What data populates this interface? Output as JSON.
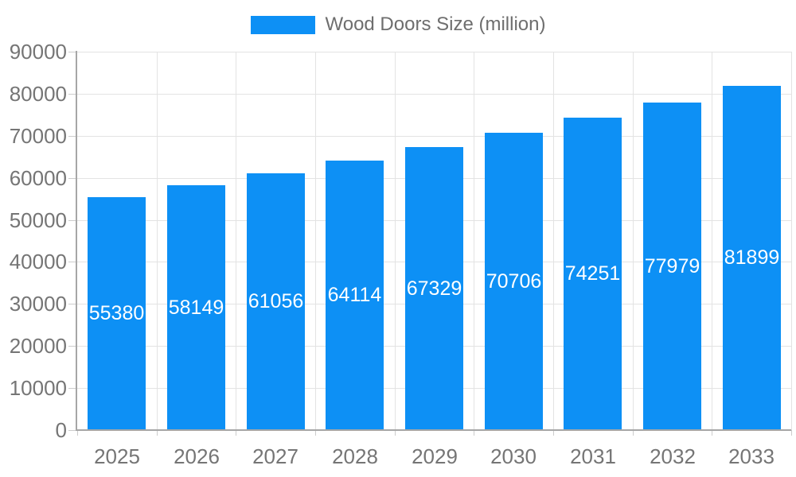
{
  "chart_data": {
    "type": "bar",
    "title": "",
    "legend": "Wood Doors Size (million)",
    "legend_position": "top",
    "categories": [
      "2025",
      "2026",
      "2027",
      "2028",
      "2029",
      "2030",
      "2031",
      "2032",
      "2033"
    ],
    "series": [
      {
        "name": "Wood Doors Size (million)",
        "values": [
          55380,
          58149,
          61056,
          64114,
          67329,
          70706,
          74251,
          77979,
          81899
        ]
      }
    ],
    "xlabel": "",
    "ylabel": "",
    "ylim": [
      0,
      90000
    ],
    "yticks": [
      0,
      10000,
      20000,
      30000,
      40000,
      50000,
      60000,
      70000,
      80000,
      90000
    ],
    "grid": true,
    "value_labels_inside_bars": true
  },
  "colors": {
    "bar": "#0d90f5",
    "bar_value_text": "#ffffff",
    "axis_line": "#a6a6a6",
    "gridline": "#e3e3e3",
    "tick_mark": "#cccccc",
    "tick_label": "#757575",
    "legend_text": "#6e6e6e",
    "background": "#ffffff"
  }
}
